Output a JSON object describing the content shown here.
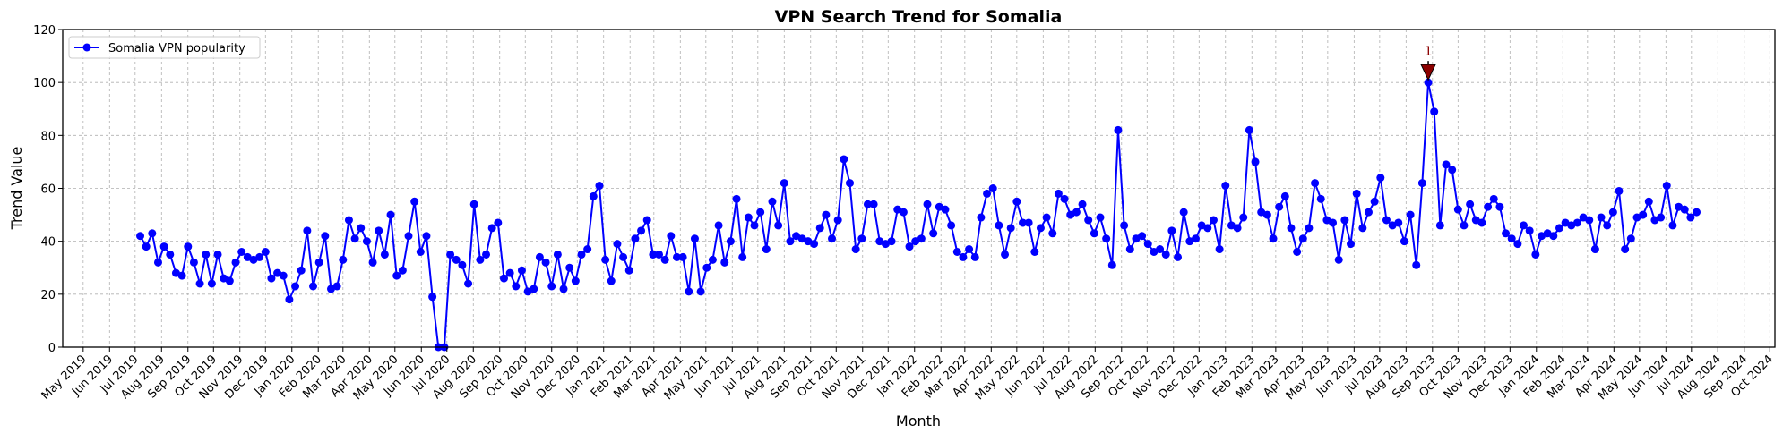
{
  "chart_data": {
    "type": "line",
    "title": "VPN Search Trend for Somalia",
    "xlabel": "Month",
    "ylabel": "Trend Value",
    "xlim": [
      "2019-04-07",
      "2024-10-07"
    ],
    "ylim": [
      0,
      120
    ],
    "yticks": [
      0,
      20,
      40,
      60,
      80,
      100,
      120
    ],
    "xticks": [
      "May 2019",
      "Jun 2019",
      "Jul 2019",
      "Aug 2019",
      "Sep 2019",
      "Oct 2019",
      "Nov 2019",
      "Dec 2019",
      "Jan 2020",
      "Feb 2020",
      "Mar 2020",
      "Apr 2020",
      "May 2020",
      "Jun 2020",
      "Jul 2020",
      "Aug 2020",
      "Sep 2020",
      "Oct 2020",
      "Nov 2020",
      "Dec 2020",
      "Jan 2021",
      "Feb 2021",
      "Mar 2021",
      "Apr 2021",
      "May 2021",
      "Jun 2021",
      "Jul 2021",
      "Aug 2021",
      "Sep 2021",
      "Oct 2021",
      "Nov 2021",
      "Dec 2021",
      "Jan 2022",
      "Feb 2022",
      "Mar 2022",
      "Apr 2022",
      "May 2022",
      "Jun 2022",
      "Jul 2022",
      "Aug 2022",
      "Sep 2022",
      "Oct 2022",
      "Nov 2022",
      "Dec 2022",
      "Jan 2023",
      "Feb 2023",
      "Mar 2023",
      "Apr 2023",
      "May 2023",
      "Jun 2023",
      "Jul 2023",
      "Aug 2023",
      "Sep 2023",
      "Oct 2023",
      "Nov 2023",
      "Dec 2023",
      "Jan 2024",
      "Feb 2024",
      "Mar 2024",
      "Apr 2024",
      "May 2024",
      "Jun 2024",
      "Jul 2024",
      "Aug 2024",
      "Sep 2024",
      "Oct 2024"
    ],
    "grid": true,
    "legend_placement": "top-left",
    "series": [
      {
        "name": "Somalia VPN popularity",
        "color": "#0000ff",
        "x": [
          "2019-07-07",
          "2019-07-14",
          "2019-07-21",
          "2019-07-28",
          "2019-08-04",
          "2019-08-11",
          "2019-08-18",
          "2019-08-25",
          "2019-09-01",
          "2019-09-08",
          "2019-09-15",
          "2019-09-22",
          "2019-09-29",
          "2019-10-06",
          "2019-10-13",
          "2019-10-20",
          "2019-10-27",
          "2019-11-03",
          "2019-11-10",
          "2019-11-17",
          "2019-11-24",
          "2019-12-01",
          "2019-12-08",
          "2019-12-15",
          "2019-12-22",
          "2019-12-29",
          "2020-01-05",
          "2020-01-12",
          "2020-01-19",
          "2020-01-26",
          "2020-02-02",
          "2020-02-09",
          "2020-02-16",
          "2020-02-23",
          "2020-03-01",
          "2020-03-08",
          "2020-03-15",
          "2020-03-22",
          "2020-03-29",
          "2020-04-05",
          "2020-04-12",
          "2020-04-19",
          "2020-04-26",
          "2020-05-03",
          "2020-05-10",
          "2020-05-17",
          "2020-05-24",
          "2020-05-31",
          "2020-06-07",
          "2020-06-14",
          "2020-06-21",
          "2020-06-28",
          "2020-07-05",
          "2020-07-12",
          "2020-07-19",
          "2020-07-26",
          "2020-08-02",
          "2020-08-09",
          "2020-08-16",
          "2020-08-23",
          "2020-08-30",
          "2020-09-06",
          "2020-09-13",
          "2020-09-20",
          "2020-09-27",
          "2020-10-04",
          "2020-10-11",
          "2020-10-18",
          "2020-10-25",
          "2020-11-01",
          "2020-11-08",
          "2020-11-15",
          "2020-11-22",
          "2020-11-29",
          "2020-12-06",
          "2020-12-13",
          "2020-12-20",
          "2020-12-27",
          "2021-01-03",
          "2021-01-10",
          "2021-01-17",
          "2021-01-24",
          "2021-01-31",
          "2021-02-07",
          "2021-02-14",
          "2021-02-21",
          "2021-02-28",
          "2021-03-07",
          "2021-03-14",
          "2021-03-21",
          "2021-03-28",
          "2021-04-04",
          "2021-04-11",
          "2021-04-18",
          "2021-04-25",
          "2021-05-02",
          "2021-05-09",
          "2021-05-16",
          "2021-05-23",
          "2021-05-30",
          "2021-06-06",
          "2021-06-13",
          "2021-06-20",
          "2021-06-27",
          "2021-07-04",
          "2021-07-11",
          "2021-07-18",
          "2021-07-25",
          "2021-08-01",
          "2021-08-08",
          "2021-08-15",
          "2021-08-22",
          "2021-08-29",
          "2021-09-05",
          "2021-09-12",
          "2021-09-19",
          "2021-09-26",
          "2021-10-03",
          "2021-10-10",
          "2021-10-17",
          "2021-10-24",
          "2021-10-31",
          "2021-11-07",
          "2021-11-14",
          "2021-11-21",
          "2021-11-28",
          "2021-12-05",
          "2021-12-12",
          "2021-12-19",
          "2021-12-26",
          "2022-01-02",
          "2022-01-09",
          "2022-01-16",
          "2022-01-23",
          "2022-01-30",
          "2022-02-06",
          "2022-02-13",
          "2022-02-20",
          "2022-02-27",
          "2022-03-06",
          "2022-03-13",
          "2022-03-20",
          "2022-03-27",
          "2022-04-03",
          "2022-04-10",
          "2022-04-17",
          "2022-04-24",
          "2022-05-01",
          "2022-05-08",
          "2022-05-15",
          "2022-05-22",
          "2022-05-29",
          "2022-06-05",
          "2022-06-12",
          "2022-06-19",
          "2022-06-26",
          "2022-07-03",
          "2022-07-10",
          "2022-07-17",
          "2022-07-24",
          "2022-07-31",
          "2022-08-07",
          "2022-08-14",
          "2022-08-21",
          "2022-08-28",
          "2022-09-04",
          "2022-09-11",
          "2022-09-18",
          "2022-09-25",
          "2022-10-02",
          "2022-10-09",
          "2022-10-16",
          "2022-10-23",
          "2022-10-30",
          "2022-11-06",
          "2022-11-13",
          "2022-11-20",
          "2022-11-27",
          "2022-12-04",
          "2022-12-11",
          "2022-12-18",
          "2022-12-25",
          "2023-01-01",
          "2023-01-08",
          "2023-01-15",
          "2023-01-22",
          "2023-01-29",
          "2023-02-05",
          "2023-02-12",
          "2023-02-19",
          "2023-02-26",
          "2023-03-05",
          "2023-03-12",
          "2023-03-19",
          "2023-03-26",
          "2023-04-02",
          "2023-04-09",
          "2023-04-16",
          "2023-04-23",
          "2023-04-30",
          "2023-05-07",
          "2023-05-14",
          "2023-05-21",
          "2023-05-28",
          "2023-06-04",
          "2023-06-11",
          "2023-06-18",
          "2023-06-25",
          "2023-07-02",
          "2023-07-09",
          "2023-07-16",
          "2023-07-23",
          "2023-07-30",
          "2023-08-06",
          "2023-08-13",
          "2023-08-20",
          "2023-08-27",
          "2023-09-03",
          "2023-09-10",
          "2023-09-17",
          "2023-09-24",
          "2023-10-01",
          "2023-10-08",
          "2023-10-15",
          "2023-10-22",
          "2023-10-29",
          "2023-11-05",
          "2023-11-12",
          "2023-11-19",
          "2023-11-26",
          "2023-12-03",
          "2023-12-10",
          "2023-12-17",
          "2023-12-24",
          "2023-12-31",
          "2024-01-07",
          "2024-01-14",
          "2024-01-21",
          "2024-01-28",
          "2024-02-04",
          "2024-02-11",
          "2024-02-18",
          "2024-02-25",
          "2024-03-03",
          "2024-03-10",
          "2024-03-17",
          "2024-03-24",
          "2024-03-31",
          "2024-04-07",
          "2024-04-14",
          "2024-04-21",
          "2024-04-28",
          "2024-05-05",
          "2024-05-12",
          "2024-05-19",
          "2024-05-26",
          "2024-06-02",
          "2024-06-09",
          "2024-06-16",
          "2024-06-23",
          "2024-06-30",
          "2024-07-07"
        ],
        "values": [
          42,
          38,
          43,
          32,
          38,
          35,
          28,
          27,
          38,
          32,
          24,
          35,
          24,
          35,
          26,
          25,
          32,
          36,
          34,
          33,
          34,
          36,
          26,
          28,
          27,
          18,
          23,
          29,
          44,
          23,
          32,
          42,
          22,
          23,
          33,
          48,
          41,
          45,
          40,
          32,
          44,
          35,
          50,
          27,
          29,
          42,
          55,
          36,
          42,
          19,
          0,
          0,
          35,
          33,
          31,
          24,
          54,
          33,
          35,
          45,
          47,
          26,
          28,
          23,
          29,
          21,
          22,
          34,
          32,
          23,
          35,
          22,
          30,
          25,
          35,
          37,
          57,
          61,
          33,
          25,
          39,
          34,
          29,
          41,
          44,
          48,
          35,
          35,
          33,
          42,
          34,
          34,
          21,
          41,
          21,
          30,
          33,
          46,
          32,
          40,
          56,
          34,
          49,
          46,
          51,
          37,
          55,
          46,
          62,
          40,
          42,
          41,
          40,
          39,
          45,
          50,
          41,
          48,
          71,
          62,
          37,
          41,
          54,
          54,
          40,
          39,
          40,
          52,
          51,
          38,
          40,
          41,
          54,
          43,
          53,
          52,
          46,
          36,
          34,
          37,
          34,
          49,
          58,
          60,
          46,
          35,
          45,
          55,
          47,
          47,
          36,
          45,
          49,
          43,
          58,
          56,
          50,
          51,
          54,
          48,
          43,
          49,
          41,
          31,
          82,
          46,
          37,
          41,
          42,
          39,
          36,
          37,
          35,
          44,
          34,
          51,
          40,
          41,
          46,
          45,
          48,
          37,
          61,
          46,
          45,
          49,
          82,
          70,
          51,
          50,
          41,
          53,
          57,
          45,
          36,
          41,
          45,
          62,
          56,
          48,
          47,
          33,
          48,
          39,
          58,
          45,
          51,
          55,
          64,
          48,
          46,
          47,
          40,
          50,
          31,
          62,
          100,
          89,
          46,
          69,
          67,
          52,
          46,
          54,
          48,
          47,
          53,
          56,
          53,
          43,
          41,
          39,
          46,
          44,
          35,
          42,
          43,
          42,
          45,
          47,
          46,
          47,
          49,
          48,
          37,
          49,
          46,
          51,
          59,
          37,
          41,
          49,
          50,
          55,
          48,
          49,
          61,
          46,
          53,
          52,
          49,
          51
        ]
      }
    ],
    "annotations": [
      {
        "label": "1",
        "x": "2023-08-27",
        "y": 100,
        "marker": "downward-triangle",
        "color": "#8b0000"
      }
    ]
  }
}
